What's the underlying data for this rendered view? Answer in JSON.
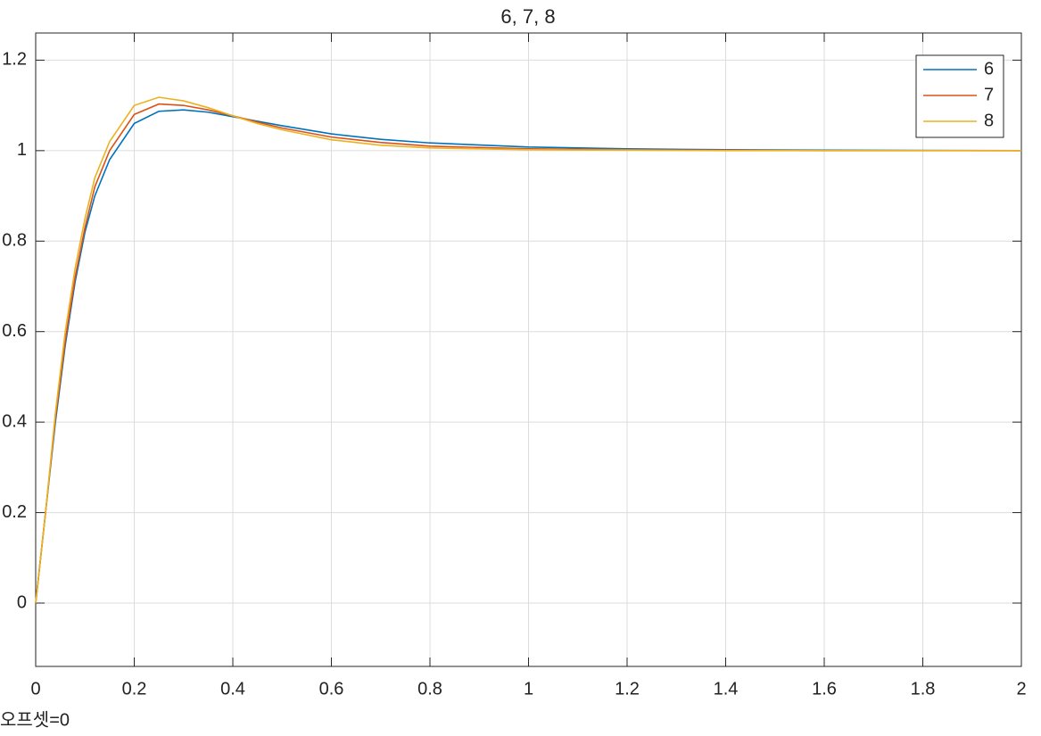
{
  "chart_data": {
    "type": "line",
    "title": "6, 7, 8",
    "annotation": "오프셋=0",
    "x": [
      0,
      0.02,
      0.04,
      0.06,
      0.08,
      0.1,
      0.12,
      0.15,
      0.2,
      0.25,
      0.3,
      0.35,
      0.4,
      0.45,
      0.5,
      0.6,
      0.7,
      0.8,
      1.0,
      1.2,
      1.4,
      1.6,
      2.0
    ],
    "series": [
      {
        "name": "6",
        "color": "#0072BD",
        "values": [
          0,
          0.2,
          0.4,
          0.57,
          0.71,
          0.82,
          0.9,
          0.98,
          1.06,
          1.087,
          1.09,
          1.085,
          1.075,
          1.065,
          1.055,
          1.037,
          1.025,
          1.017,
          1.008,
          1.004,
          1.002,
          1.001,
          1.0
        ]
      },
      {
        "name": "7",
        "color": "#D95319",
        "values": [
          0,
          0.2,
          0.41,
          0.58,
          0.72,
          0.83,
          0.92,
          1.0,
          1.08,
          1.103,
          1.1,
          1.09,
          1.077,
          1.063,
          1.05,
          1.03,
          1.018,
          1.01,
          1.004,
          1.002,
          1.001,
          1.0,
          1.0
        ]
      },
      {
        "name": "8",
        "color": "#EDB120",
        "values": [
          0,
          0.2,
          0.42,
          0.6,
          0.74,
          0.85,
          0.94,
          1.02,
          1.1,
          1.118,
          1.11,
          1.095,
          1.077,
          1.06,
          1.046,
          1.024,
          1.012,
          1.006,
          1.002,
          1.001,
          1.0,
          1.0,
          1.0
        ]
      }
    ],
    "xlim": [
      0,
      2
    ],
    "xticks": [
      0,
      0.2,
      0.4,
      0.6,
      0.8,
      1,
      1.2,
      1.4,
      1.6,
      1.8,
      2
    ],
    "ylim": [
      -0.14,
      1.26
    ],
    "yticks": [
      0,
      0.2,
      0.4,
      0.6,
      0.8,
      1,
      1.2
    ],
    "grid": true,
    "legend": "top-right"
  }
}
